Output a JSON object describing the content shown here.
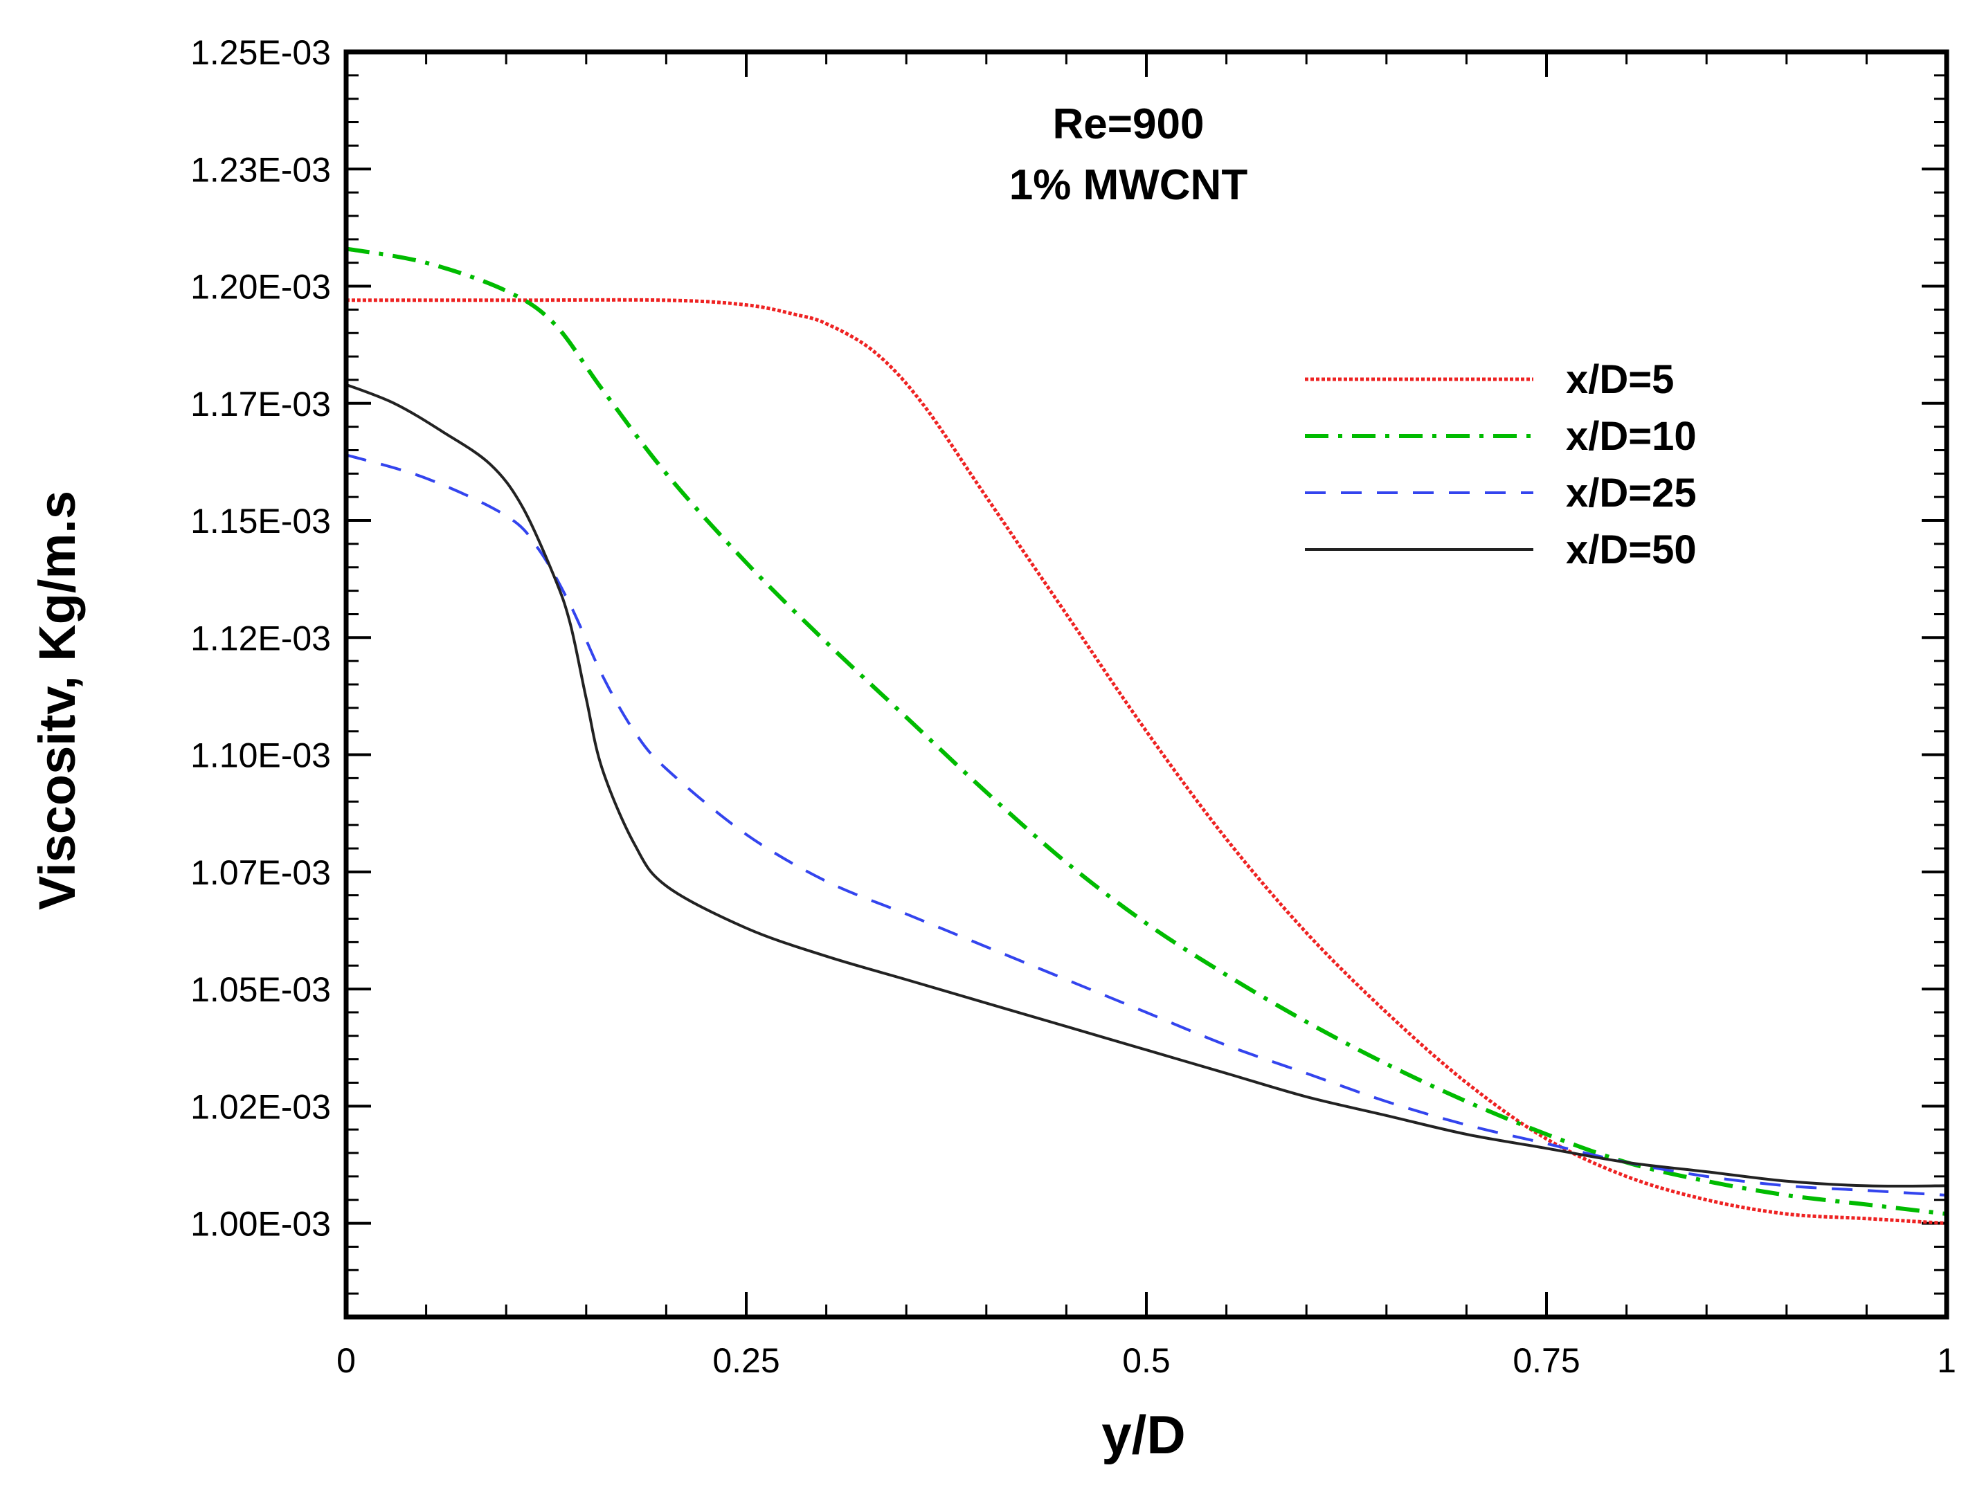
{
  "chart_data": {
    "type": "line",
    "title": "",
    "annotations": [
      "Re=900",
      "1% MWCNT"
    ],
    "xlabel": "y/D",
    "ylabel": "Viscositv, Kg/m.s",
    "xlim": [
      0,
      1
    ],
    "ylim": [
      0.00098,
      0.00125
    ],
    "x_ticks": [
      0,
      0.25,
      0.5,
      0.75,
      1
    ],
    "x_tick_labels": [
      "0",
      "0.25",
      "0.5",
      "0.75",
      "1"
    ],
    "y_ticks": [
      0.001,
      0.001025,
      0.00105,
      0.001075,
      0.0011,
      0.001125,
      0.00115,
      0.001175,
      0.0012,
      0.001225,
      0.00125
    ],
    "y_tick_labels": [
      "1.00E-03",
      "1.02E-03",
      "1.05E-03",
      "1.07E-03",
      "1.10E-03",
      "1.12E-03",
      "1.15E-03",
      "1.17E-03",
      "1.20E-03",
      "1.23E-03",
      "1.25E-03"
    ],
    "grid": false,
    "legend_position": "right",
    "series": [
      {
        "name": "x/D=5",
        "color": "#ee2222",
        "style": "dotted",
        "x": [
          0,
          0.1,
          0.2,
          0.25,
          0.28,
          0.3,
          0.33,
          0.36,
          0.4,
          0.45,
          0.5,
          0.55,
          0.6,
          0.65,
          0.7,
          0.75,
          0.8,
          0.85,
          0.9,
          0.95,
          1.0
        ],
        "y": [
          0.001197,
          0.001197,
          0.001197,
          0.001196,
          0.001194,
          0.001192,
          0.001186,
          0.001175,
          0.001155,
          0.00113,
          0.001105,
          0.001082,
          0.001062,
          0.001045,
          0.00103,
          0.001018,
          0.00101,
          0.001005,
          0.001002,
          0.001001,
          0.001
        ]
      },
      {
        "name": "x/D=10",
        "color": "#00bb00",
        "style": "dashdot",
        "x": [
          0,
          0.05,
          0.1,
          0.13,
          0.16,
          0.2,
          0.25,
          0.3,
          0.35,
          0.4,
          0.45,
          0.5,
          0.55,
          0.6,
          0.65,
          0.7,
          0.75,
          0.8,
          0.85,
          0.9,
          0.95,
          1.0
        ],
        "y": [
          0.001208,
          0.001205,
          0.001199,
          0.001192,
          0.001178,
          0.00116,
          0.001141,
          0.001124,
          0.001108,
          0.001092,
          0.001077,
          0.001064,
          0.001053,
          0.001043,
          0.001034,
          0.001026,
          0.001019,
          0.001013,
          0.001009,
          0.001006,
          0.001004,
          0.001002
        ]
      },
      {
        "name": "x/D=25",
        "color": "#3344ee",
        "style": "dashed",
        "x": [
          0,
          0.05,
          0.1,
          0.12,
          0.14,
          0.16,
          0.18,
          0.2,
          0.25,
          0.3,
          0.35,
          0.4,
          0.45,
          0.5,
          0.55,
          0.6,
          0.65,
          0.7,
          0.75,
          0.8,
          0.85,
          0.9,
          0.95,
          1.0
        ],
        "y": [
          0.001164,
          0.001159,
          0.001151,
          0.001144,
          0.001132,
          0.001117,
          0.001105,
          0.001097,
          0.001083,
          0.001073,
          0.001066,
          0.001059,
          0.001052,
          0.001045,
          0.001038,
          0.001032,
          0.001026,
          0.001021,
          0.001017,
          0.001013,
          0.00101,
          0.001008,
          0.001007,
          0.001006
        ]
      },
      {
        "name": "x/D=50",
        "color": "#222222",
        "style": "solid",
        "x": [
          0,
          0.03,
          0.06,
          0.09,
          0.11,
          0.13,
          0.14,
          0.15,
          0.16,
          0.18,
          0.2,
          0.25,
          0.3,
          0.35,
          0.4,
          0.45,
          0.5,
          0.55,
          0.6,
          0.65,
          0.7,
          0.75,
          0.8,
          0.85,
          0.9,
          0.95,
          1.0
        ],
        "y": [
          0.001179,
          0.001175,
          0.001169,
          0.001162,
          0.001153,
          0.001138,
          0.001128,
          0.001112,
          0.001097,
          0.001081,
          0.001072,
          0.001063,
          0.001057,
          0.001052,
          0.001047,
          0.001042,
          0.001037,
          0.001032,
          0.001027,
          0.001023,
          0.001019,
          0.001016,
          0.001013,
          0.001011,
          0.001009,
          0.001008,
          0.001008
        ]
      }
    ]
  }
}
